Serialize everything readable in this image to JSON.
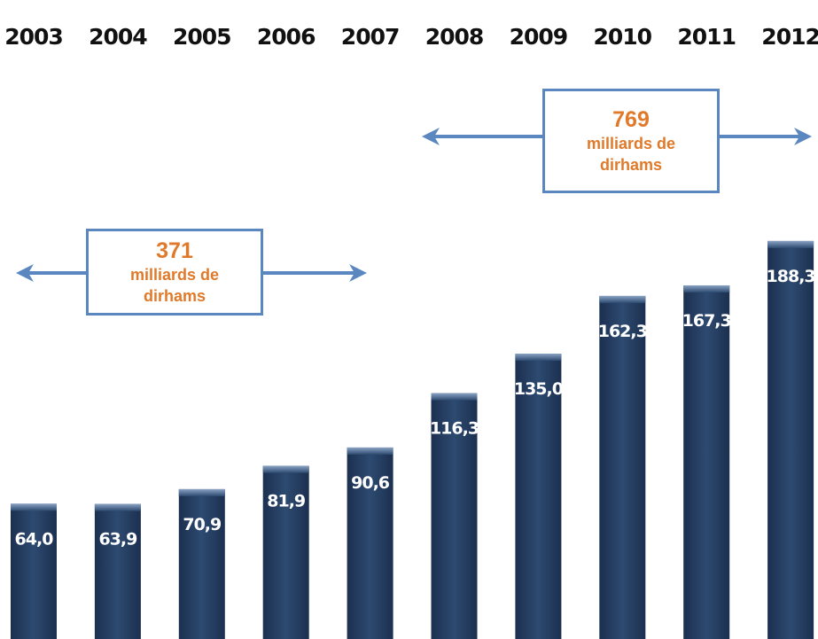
{
  "chart_data": {
    "type": "bar",
    "categories": [
      "2003",
      "2004",
      "2005",
      "2006",
      "2007",
      "2008",
      "2009",
      "2010",
      "2011",
      "2012"
    ],
    "values": [
      64.0,
      63.9,
      70.9,
      81.9,
      90.6,
      116.3,
      135.0,
      162.3,
      167.3,
      188.3
    ],
    "value_labels": [
      "64,0",
      "63,9",
      "70,9",
      "81,9",
      "90,6",
      "116,3",
      "135,0",
      "162,3",
      "167,3",
      "188,3"
    ],
    "color": "#243c5e",
    "annotations": [
      {
        "amount": "371",
        "text": "milliards de dirhams"
      },
      {
        "amount": "769",
        "text": "milliards de dirhams"
      }
    ]
  }
}
